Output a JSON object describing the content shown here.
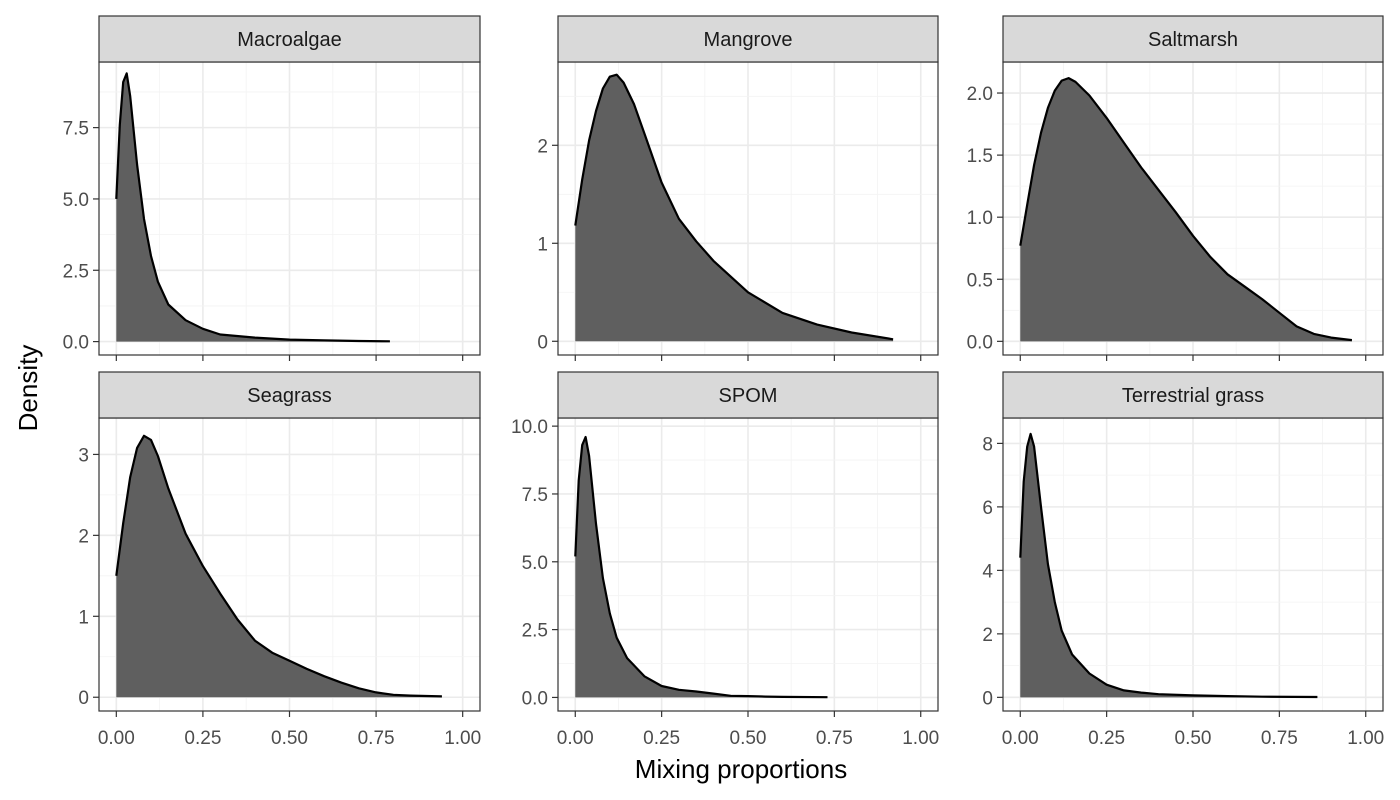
{
  "chart_data": {
    "type": "area",
    "xlabel": "Mixing proportions",
    "ylabel": "Density",
    "grid": true,
    "colors": {
      "fill": "#5f5f5f",
      "line": "#000000",
      "strip_bg": "#d9d9d9",
      "grid_major": "#ebebeb",
      "grid_minor": "#f3f3f3",
      "panel_border": "#333333"
    },
    "panels": [
      {
        "label": "Macroalgae",
        "xlim": [
          -0.05,
          1.05
        ],
        "ylim": [
          -0.47,
          9.8
        ],
        "x_ticks": [
          "0.00",
          "0.25",
          "0.50",
          "0.75",
          "1.00"
        ],
        "y_ticks": [
          "0.0",
          "2.5",
          "5.0",
          "7.5"
        ],
        "y_tick_values": [
          0,
          2.5,
          5.0,
          7.5
        ],
        "x": [
          0,
          0.01,
          0.02,
          0.03,
          0.04,
          0.06,
          0.08,
          0.1,
          0.12,
          0.15,
          0.2,
          0.25,
          0.3,
          0.4,
          0.5,
          0.6,
          0.7,
          0.79
        ],
        "density": [
          5.0,
          7.6,
          9.1,
          9.4,
          8.6,
          6.2,
          4.3,
          3.0,
          2.1,
          1.3,
          0.75,
          0.45,
          0.25,
          0.14,
          0.07,
          0.04,
          0.02,
          0.01
        ]
      },
      {
        "label": "Mangrove",
        "xlim": [
          -0.05,
          1.05
        ],
        "ylim": [
          -0.14,
          2.85
        ],
        "x_ticks": [
          "0.00",
          "0.25",
          "0.50",
          "0.75",
          "1.00"
        ],
        "y_ticks": [
          "0",
          "1",
          "2"
        ],
        "y_tick_values": [
          0,
          1,
          2
        ],
        "x": [
          0,
          0.02,
          0.04,
          0.06,
          0.08,
          0.1,
          0.12,
          0.14,
          0.17,
          0.2,
          0.25,
          0.3,
          0.35,
          0.4,
          0.5,
          0.6,
          0.7,
          0.8,
          0.92
        ],
        "density": [
          1.18,
          1.65,
          2.05,
          2.35,
          2.58,
          2.7,
          2.72,
          2.64,
          2.42,
          2.12,
          1.62,
          1.25,
          1.02,
          0.82,
          0.5,
          0.29,
          0.17,
          0.09,
          0.02
        ]
      },
      {
        "label": "Saltmarsh",
        "xlim": [
          -0.05,
          1.05
        ],
        "ylim": [
          -0.11,
          2.25
        ],
        "x_ticks": [
          "0.00",
          "0.25",
          "0.50",
          "0.75",
          "1.00"
        ],
        "y_ticks": [
          "0.0",
          "0.5",
          "1.0",
          "1.5",
          "2.0"
        ],
        "y_tick_values": [
          0,
          0.5,
          1.0,
          1.5,
          2.0
        ],
        "x": [
          0,
          0.02,
          0.04,
          0.06,
          0.08,
          0.1,
          0.12,
          0.14,
          0.16,
          0.2,
          0.25,
          0.3,
          0.35,
          0.4,
          0.45,
          0.5,
          0.55,
          0.6,
          0.65,
          0.7,
          0.75,
          0.8,
          0.85,
          0.9,
          0.96
        ],
        "density": [
          0.77,
          1.1,
          1.42,
          1.68,
          1.88,
          2.02,
          2.1,
          2.12,
          2.09,
          1.98,
          1.8,
          1.6,
          1.4,
          1.22,
          1.04,
          0.85,
          0.68,
          0.54,
          0.44,
          0.34,
          0.23,
          0.12,
          0.06,
          0.03,
          0.01
        ]
      },
      {
        "label": "Seagrass",
        "xlim": [
          -0.05,
          1.05
        ],
        "ylim": [
          -0.17,
          3.45
        ],
        "x_ticks": [
          "0.00",
          "0.25",
          "0.50",
          "0.75",
          "1.00"
        ],
        "y_ticks": [
          "0",
          "1",
          "2",
          "3"
        ],
        "y_tick_values": [
          0,
          1,
          2,
          3
        ],
        "x": [
          0,
          0.02,
          0.04,
          0.06,
          0.08,
          0.1,
          0.12,
          0.15,
          0.2,
          0.25,
          0.3,
          0.35,
          0.4,
          0.45,
          0.5,
          0.55,
          0.6,
          0.65,
          0.7,
          0.75,
          0.8,
          0.85,
          0.94
        ],
        "density": [
          1.5,
          2.15,
          2.72,
          3.08,
          3.23,
          3.18,
          2.98,
          2.58,
          2.02,
          1.62,
          1.28,
          0.96,
          0.7,
          0.55,
          0.45,
          0.35,
          0.26,
          0.18,
          0.11,
          0.06,
          0.03,
          0.02,
          0.01
        ]
      },
      {
        "label": "SPOM",
        "xlim": [
          -0.05,
          1.05
        ],
        "ylim": [
          -0.5,
          10.3
        ],
        "x_ticks": [
          "0.00",
          "0.25",
          "0.50",
          "0.75",
          "1.00"
        ],
        "y_ticks": [
          "0.0",
          "2.5",
          "5.0",
          "7.5",
          "10.0"
        ],
        "y_tick_values": [
          0,
          2.5,
          5.0,
          7.5,
          10.0
        ],
        "x": [
          0,
          0.01,
          0.02,
          0.03,
          0.04,
          0.06,
          0.08,
          0.1,
          0.12,
          0.15,
          0.2,
          0.25,
          0.3,
          0.35,
          0.4,
          0.45,
          0.5,
          0.55,
          0.6,
          0.73
        ],
        "density": [
          5.2,
          8.0,
          9.3,
          9.6,
          8.9,
          6.4,
          4.4,
          3.1,
          2.2,
          1.45,
          0.78,
          0.42,
          0.28,
          0.22,
          0.14,
          0.06,
          0.05,
          0.03,
          0.02,
          0.01
        ]
      },
      {
        "label": "Terrestrial grass",
        "xlim": [
          -0.05,
          1.05
        ],
        "ylim": [
          -0.43,
          8.8
        ],
        "x_ticks": [
          "0.00",
          "0.25",
          "0.50",
          "0.75",
          "1.00"
        ],
        "y_ticks": [
          "0",
          "2",
          "4",
          "6",
          "8"
        ],
        "y_tick_values": [
          0,
          2,
          4,
          6,
          8
        ],
        "x": [
          0,
          0.01,
          0.02,
          0.03,
          0.04,
          0.06,
          0.08,
          0.1,
          0.12,
          0.15,
          0.2,
          0.25,
          0.3,
          0.35,
          0.4,
          0.5,
          0.6,
          0.7,
          0.86
        ],
        "density": [
          4.4,
          6.8,
          7.9,
          8.3,
          7.9,
          6.0,
          4.2,
          3.0,
          2.1,
          1.35,
          0.75,
          0.4,
          0.22,
          0.15,
          0.1,
          0.06,
          0.04,
          0.02,
          0.01
        ]
      }
    ]
  }
}
